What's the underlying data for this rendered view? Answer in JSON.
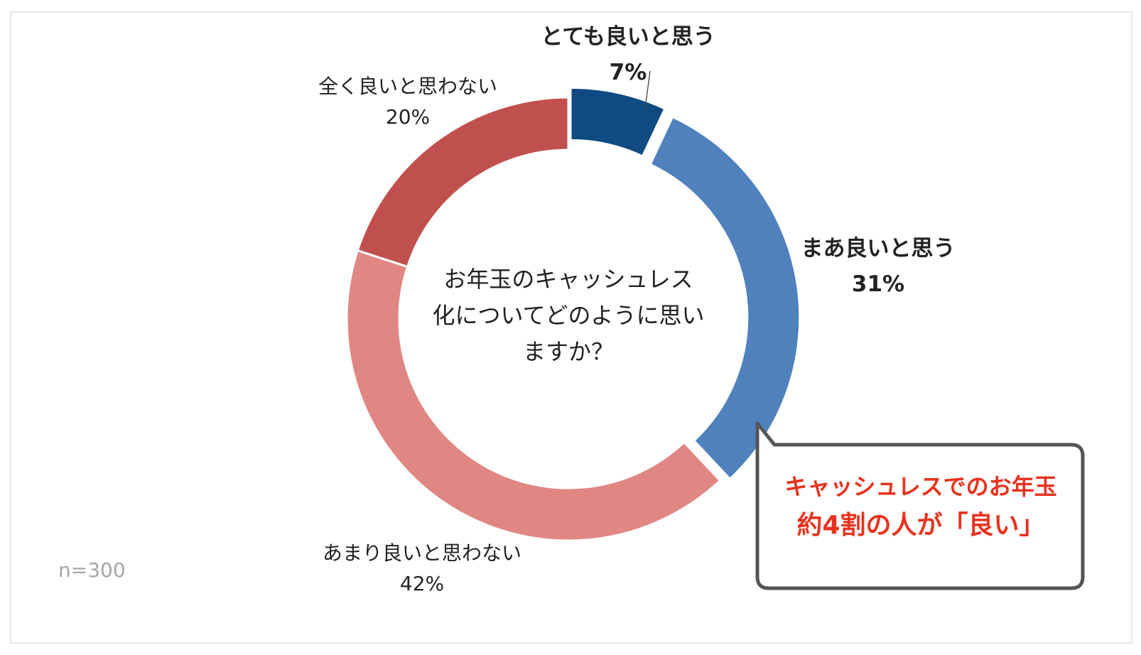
{
  "chart_data": {
    "type": "pie",
    "title": "お年玉のキャッシュレス化についてどのように思いますか？",
    "title_lines": [
      "お年玉のキャッシュレス",
      "化についてどのように思い",
      "ますか？"
    ],
    "variant": "donut",
    "start_angle_deg": 0,
    "direction": "clockwise",
    "sample_size": "n=300",
    "slices": [
      {
        "label": "とても良いと思う",
        "value": 7,
        "value_label": "7%",
        "color": "#0f4a82",
        "bold": true
      },
      {
        "label": "まあ良いと思う",
        "value": 31,
        "value_label": "31%",
        "color": "#4f81bd",
        "bold": true
      },
      {
        "label": "あまり良いと思わない",
        "value": 42,
        "value_label": "42%",
        "color": "#e08784",
        "bold": false
      },
      {
        "label": "全く良いと思わない",
        "value": 20,
        "value_label": "20%",
        "color": "#c0504d",
        "bold": false
      }
    ],
    "exploded_slices": [
      0,
      1
    ],
    "callout": {
      "line1": "キャッシュレスでのお年玉",
      "line2": "約4割の人が「良い」",
      "text_color": "#e8321e",
      "border_color": "#555555"
    }
  }
}
